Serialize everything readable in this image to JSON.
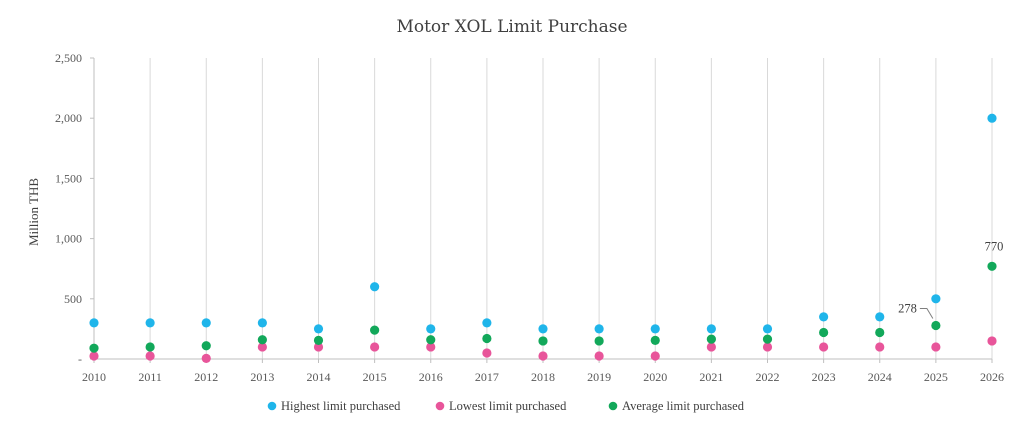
{
  "chart_data": {
    "type": "scatter",
    "title": "Motor XOL Limit Purchase",
    "xlabel": "",
    "ylabel": "Million THB",
    "x": [
      "2010",
      "2011",
      "2012",
      "2013",
      "2014",
      "2015",
      "2016",
      "2017",
      "2018",
      "2019",
      "2020",
      "2021",
      "2022",
      "2023",
      "2024",
      "2025",
      "2026"
    ],
    "ylim": [
      0,
      2500
    ],
    "yticks": [
      0,
      500,
      1000,
      1500,
      2000,
      2500
    ],
    "ytick_labels": [
      "-",
      "500",
      "1,000",
      "1,500",
      "2,000",
      "2,500"
    ],
    "grid": "vertical",
    "legend_position": "bottom",
    "series": [
      {
        "name": "Highest limit purchased",
        "color": "#1fb5ea",
        "values": [
          300,
          300,
          300,
          300,
          250,
          600,
          250,
          300,
          250,
          250,
          250,
          250,
          250,
          350,
          350,
          500,
          2000
        ]
      },
      {
        "name": "Lowest limit purchased",
        "color": "#e8559a",
        "values": [
          25,
          25,
          5,
          100,
          100,
          100,
          100,
          50,
          25,
          25,
          25,
          100,
          100,
          100,
          100,
          100,
          150
        ]
      },
      {
        "name": "Average limit purchased",
        "color": "#12a85a",
        "values": [
          90,
          100,
          110,
          160,
          155,
          240,
          160,
          170,
          150,
          150,
          155,
          165,
          165,
          220,
          220,
          278,
          770
        ]
      }
    ],
    "annotations": [
      {
        "series": 2,
        "index": 15,
        "text": "278"
      },
      {
        "series": 2,
        "index": 16,
        "text": "770"
      }
    ]
  }
}
